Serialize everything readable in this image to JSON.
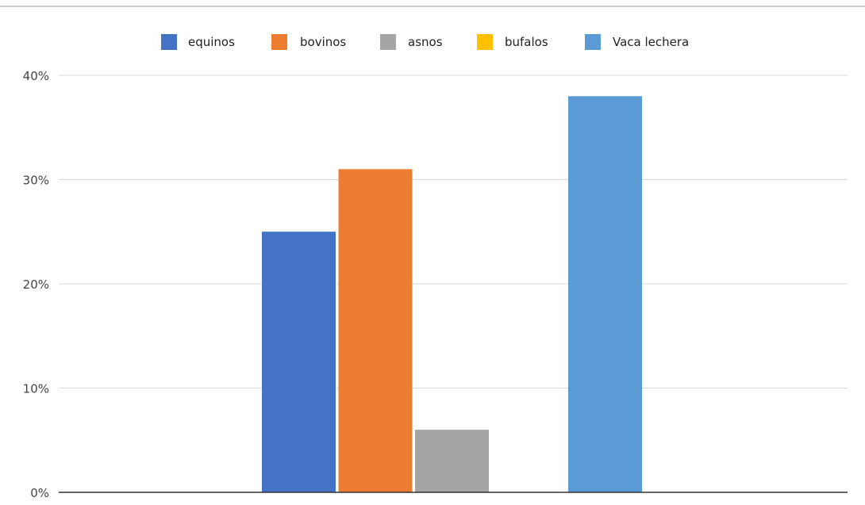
{
  "chart_data": {
    "type": "bar",
    "title": "",
    "xlabel": "",
    "ylabel": "",
    "ylim": [
      0,
      40
    ],
    "yticks": [
      "0%",
      "10%",
      "20%",
      "30%",
      "40%"
    ],
    "ytick_values": [
      0,
      10,
      20,
      30,
      40
    ],
    "grid": true,
    "legend_position": "top-center",
    "series": [
      {
        "name": "equinos",
        "value": 25,
        "color": "#4472C4"
      },
      {
        "name": "bovinos",
        "value": 31,
        "color": "#ED7D31"
      },
      {
        "name": "asnos",
        "value": 6,
        "color": "#A5A5A5"
      },
      {
        "name": "bufalos",
        "value": 0,
        "color": "#FFC000"
      },
      {
        "name": "Vaca lechera",
        "value": 38,
        "color": "#5B9BD5"
      }
    ]
  }
}
